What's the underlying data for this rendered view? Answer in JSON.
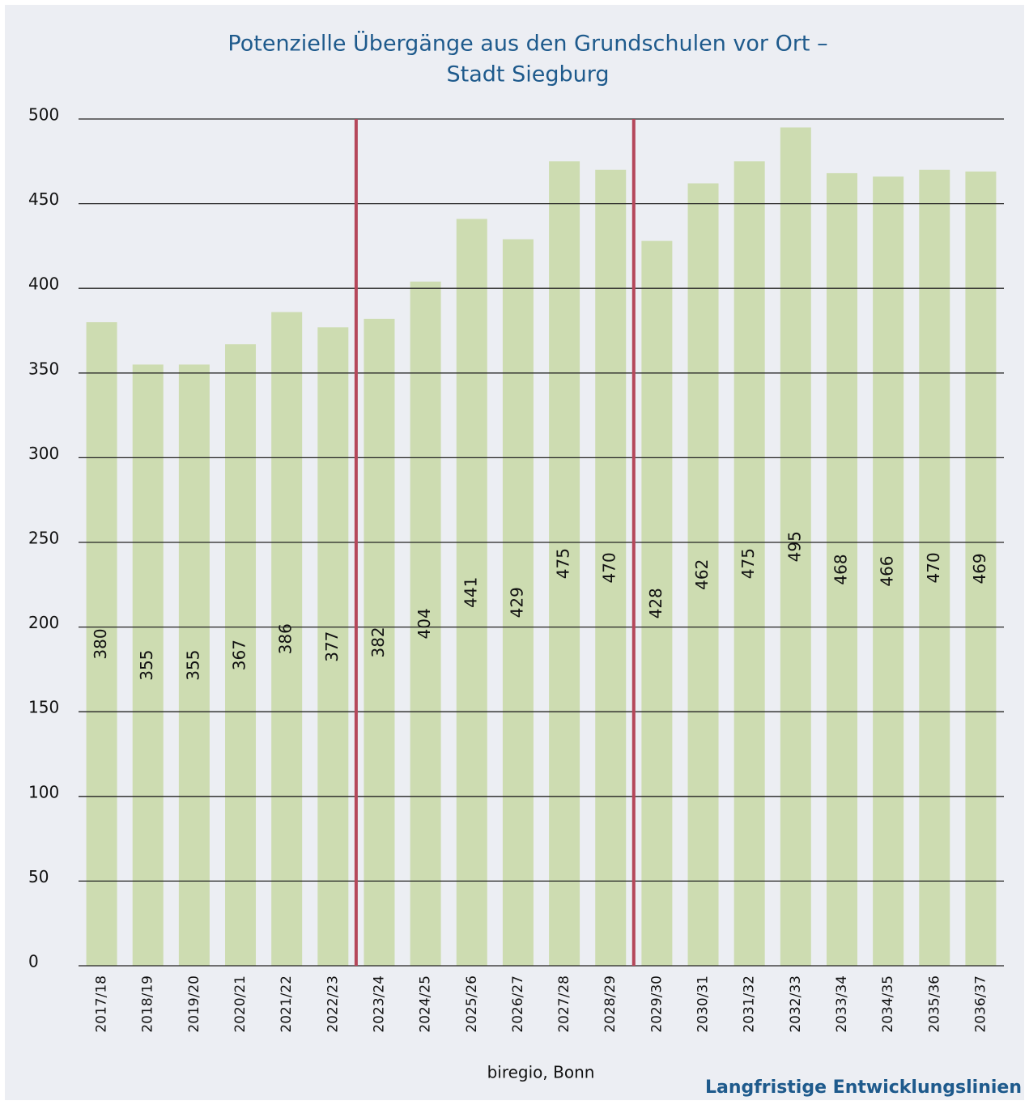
{
  "chart_data": {
    "type": "bar",
    "title": [
      "Potenzielle Übergänge aus den Grundschulen vor Ort –",
      "Stadt Siegburg"
    ],
    "categories": [
      "2017/18",
      "2018/19",
      "2019/20",
      "2020/21",
      "2021/22",
      "2022/23",
      "2023/24",
      "2024/25",
      "2025/26",
      "2026/27",
      "2027/28",
      "2028/29",
      "2029/30",
      "2030/31",
      "2031/32",
      "2032/33",
      "2033/34",
      "2034/35",
      "2035/36",
      "2036/37"
    ],
    "values": [
      380,
      355,
      355,
      367,
      386,
      377,
      382,
      404,
      441,
      429,
      475,
      470,
      428,
      462,
      475,
      495,
      468,
      466,
      470,
      469
    ],
    "color": "#cddcb1",
    "ylim": [
      0,
      500
    ],
    "yticks": [
      0,
      50,
      100,
      150,
      200,
      250,
      300,
      350,
      400,
      450,
      500
    ],
    "grid": true,
    "source": "biregio, Bonn",
    "footer": "Langfristige Entwicklungslinien"
  }
}
